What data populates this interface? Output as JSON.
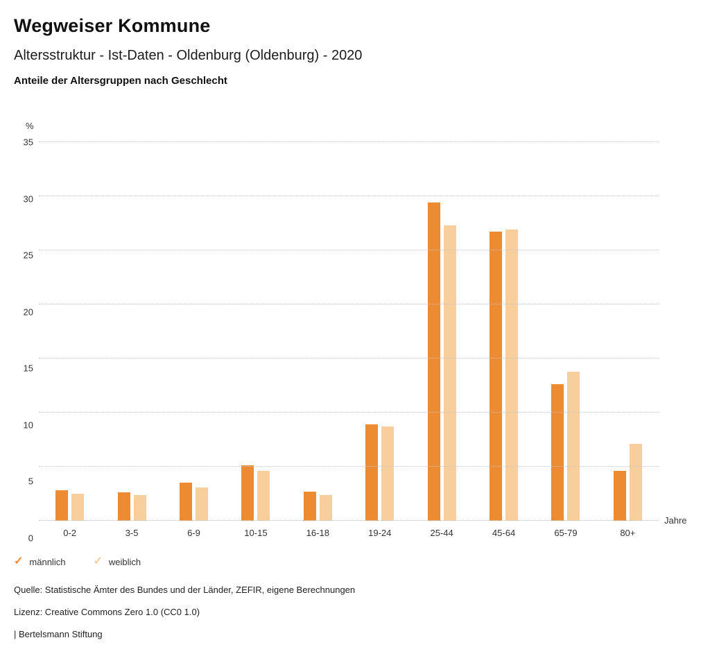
{
  "header": {
    "title": "Wegweiser Kommune",
    "subtitle": "Altersstruktur - Ist-Daten - Oldenburg (Oldenburg) - 2020",
    "heading": "Anteile der Altersgruppen nach Geschlecht"
  },
  "chart_data": {
    "type": "bar",
    "categories": [
      "0-2",
      "3-5",
      "6-9",
      "10-15",
      "16-18",
      "19-24",
      "25-44",
      "45-64",
      "65-79",
      "80+"
    ],
    "series": [
      {
        "name": "männlich",
        "color": "#ED8B32",
        "values": [
          2.8,
          2.6,
          3.5,
          5.1,
          2.7,
          8.9,
          29.4,
          26.7,
          12.6,
          4.6
        ]
      },
      {
        "name": "weiblich",
        "color": "#F8CE9D",
        "values": [
          2.5,
          2.4,
          3.1,
          4.6,
          2.4,
          8.7,
          27.3,
          26.9,
          13.8,
          7.1
        ]
      }
    ],
    "title": "Anteile der Altersgruppen nach Geschlecht",
    "ylabel": "%",
    "xlabel": "Jahre",
    "ylim": [
      0,
      35
    ],
    "yticks": [
      0,
      5,
      10,
      15,
      20,
      25,
      30,
      35
    ],
    "grid": "horizontal-dotted",
    "legend_position": "bottom-left"
  },
  "legend": {
    "items": [
      {
        "label": "männlich",
        "color": "#ED8B32"
      },
      {
        "label": "weiblich",
        "color": "#F8CE9D"
      }
    ]
  },
  "footer": {
    "source": "Quelle: Statistische Ämter des Bundes und der Länder, ZEFIR, eigene Berechnungen",
    "license": "Lizenz: Creative Commons Zero 1.0 (CC0 1.0)",
    "attribution": "| Bertelsmann Stiftung"
  }
}
